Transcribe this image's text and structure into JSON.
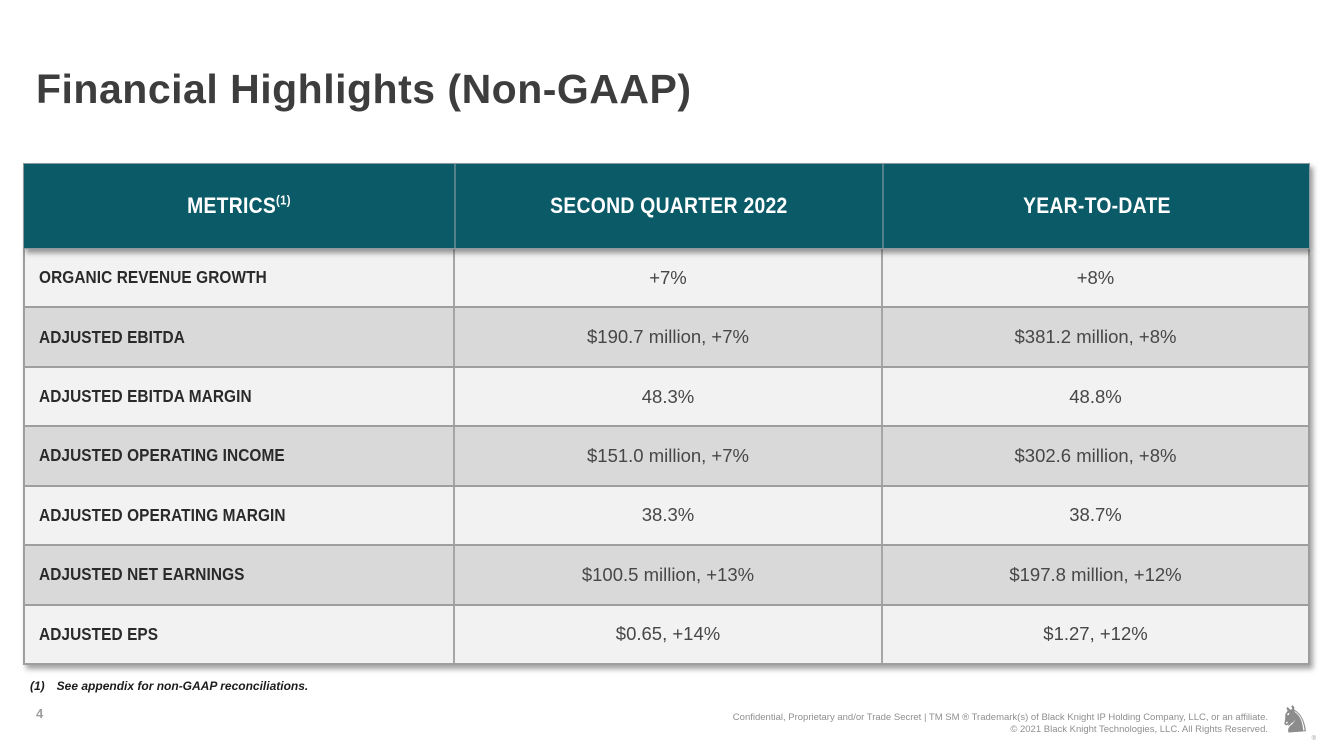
{
  "slide": {
    "title": "Financial Highlights (Non-GAAP)",
    "page_number": "4",
    "footnote": {
      "marker": "(1)",
      "text": "See appendix for non-GAAP reconciliations."
    },
    "footer": {
      "line1": "Confidential, Proprietary and/or Trade Secret | TM SM ® Trademark(s) of Black Knight IP Holding Company, LLC, or an affiliate.",
      "line2": "© 2021 Black Knight Technologies, LLC.  All Rights Reserved."
    },
    "logo": {
      "name": "black-knight-logo",
      "glyph": "♞",
      "registered_mark": "®"
    }
  },
  "table": {
    "columns": [
      "METRICS",
      "SECOND QUARTER 2022",
      "YEAR-TO-DATE"
    ],
    "metrics_superscript": "(1)",
    "rows": [
      {
        "metric": "ORGANIC REVENUE GROWTH",
        "q2_2022": "+7%",
        "ytd": "+8%"
      },
      {
        "metric": "ADJUSTED EBITDA",
        "q2_2022": "$190.7 million, +7%",
        "ytd": "$381.2 million, +8%"
      },
      {
        "metric": "ADJUSTED EBITDA MARGIN",
        "q2_2022": "48.3%",
        "ytd": "48.8%"
      },
      {
        "metric": "ADJUSTED OPERATING INCOME",
        "q2_2022": "$151.0 million, +7%",
        "ytd": "$302.6 million, +8%"
      },
      {
        "metric": "ADJUSTED OPERATING MARGIN",
        "q2_2022": "38.3%",
        "ytd": "38.7%"
      },
      {
        "metric": "ADJUSTED NET EARNINGS",
        "q2_2022": "$100.5 million, +13%",
        "ytd": "$197.8 million, +12%"
      },
      {
        "metric": "ADJUSTED EPS",
        "q2_2022": "$0.65, +14%",
        "ytd": "$1.27, +12%"
      }
    ]
  },
  "colors": {
    "header_teal": "#0a5a67",
    "row_light": "#f2f2f2",
    "row_dark": "#d9d9d9",
    "grid_line": "#9e9e9e",
    "title_text": "#3d3d3d",
    "value_text": "#474747",
    "footer_text": "#8f8f8f",
    "background": "#ffffff"
  }
}
